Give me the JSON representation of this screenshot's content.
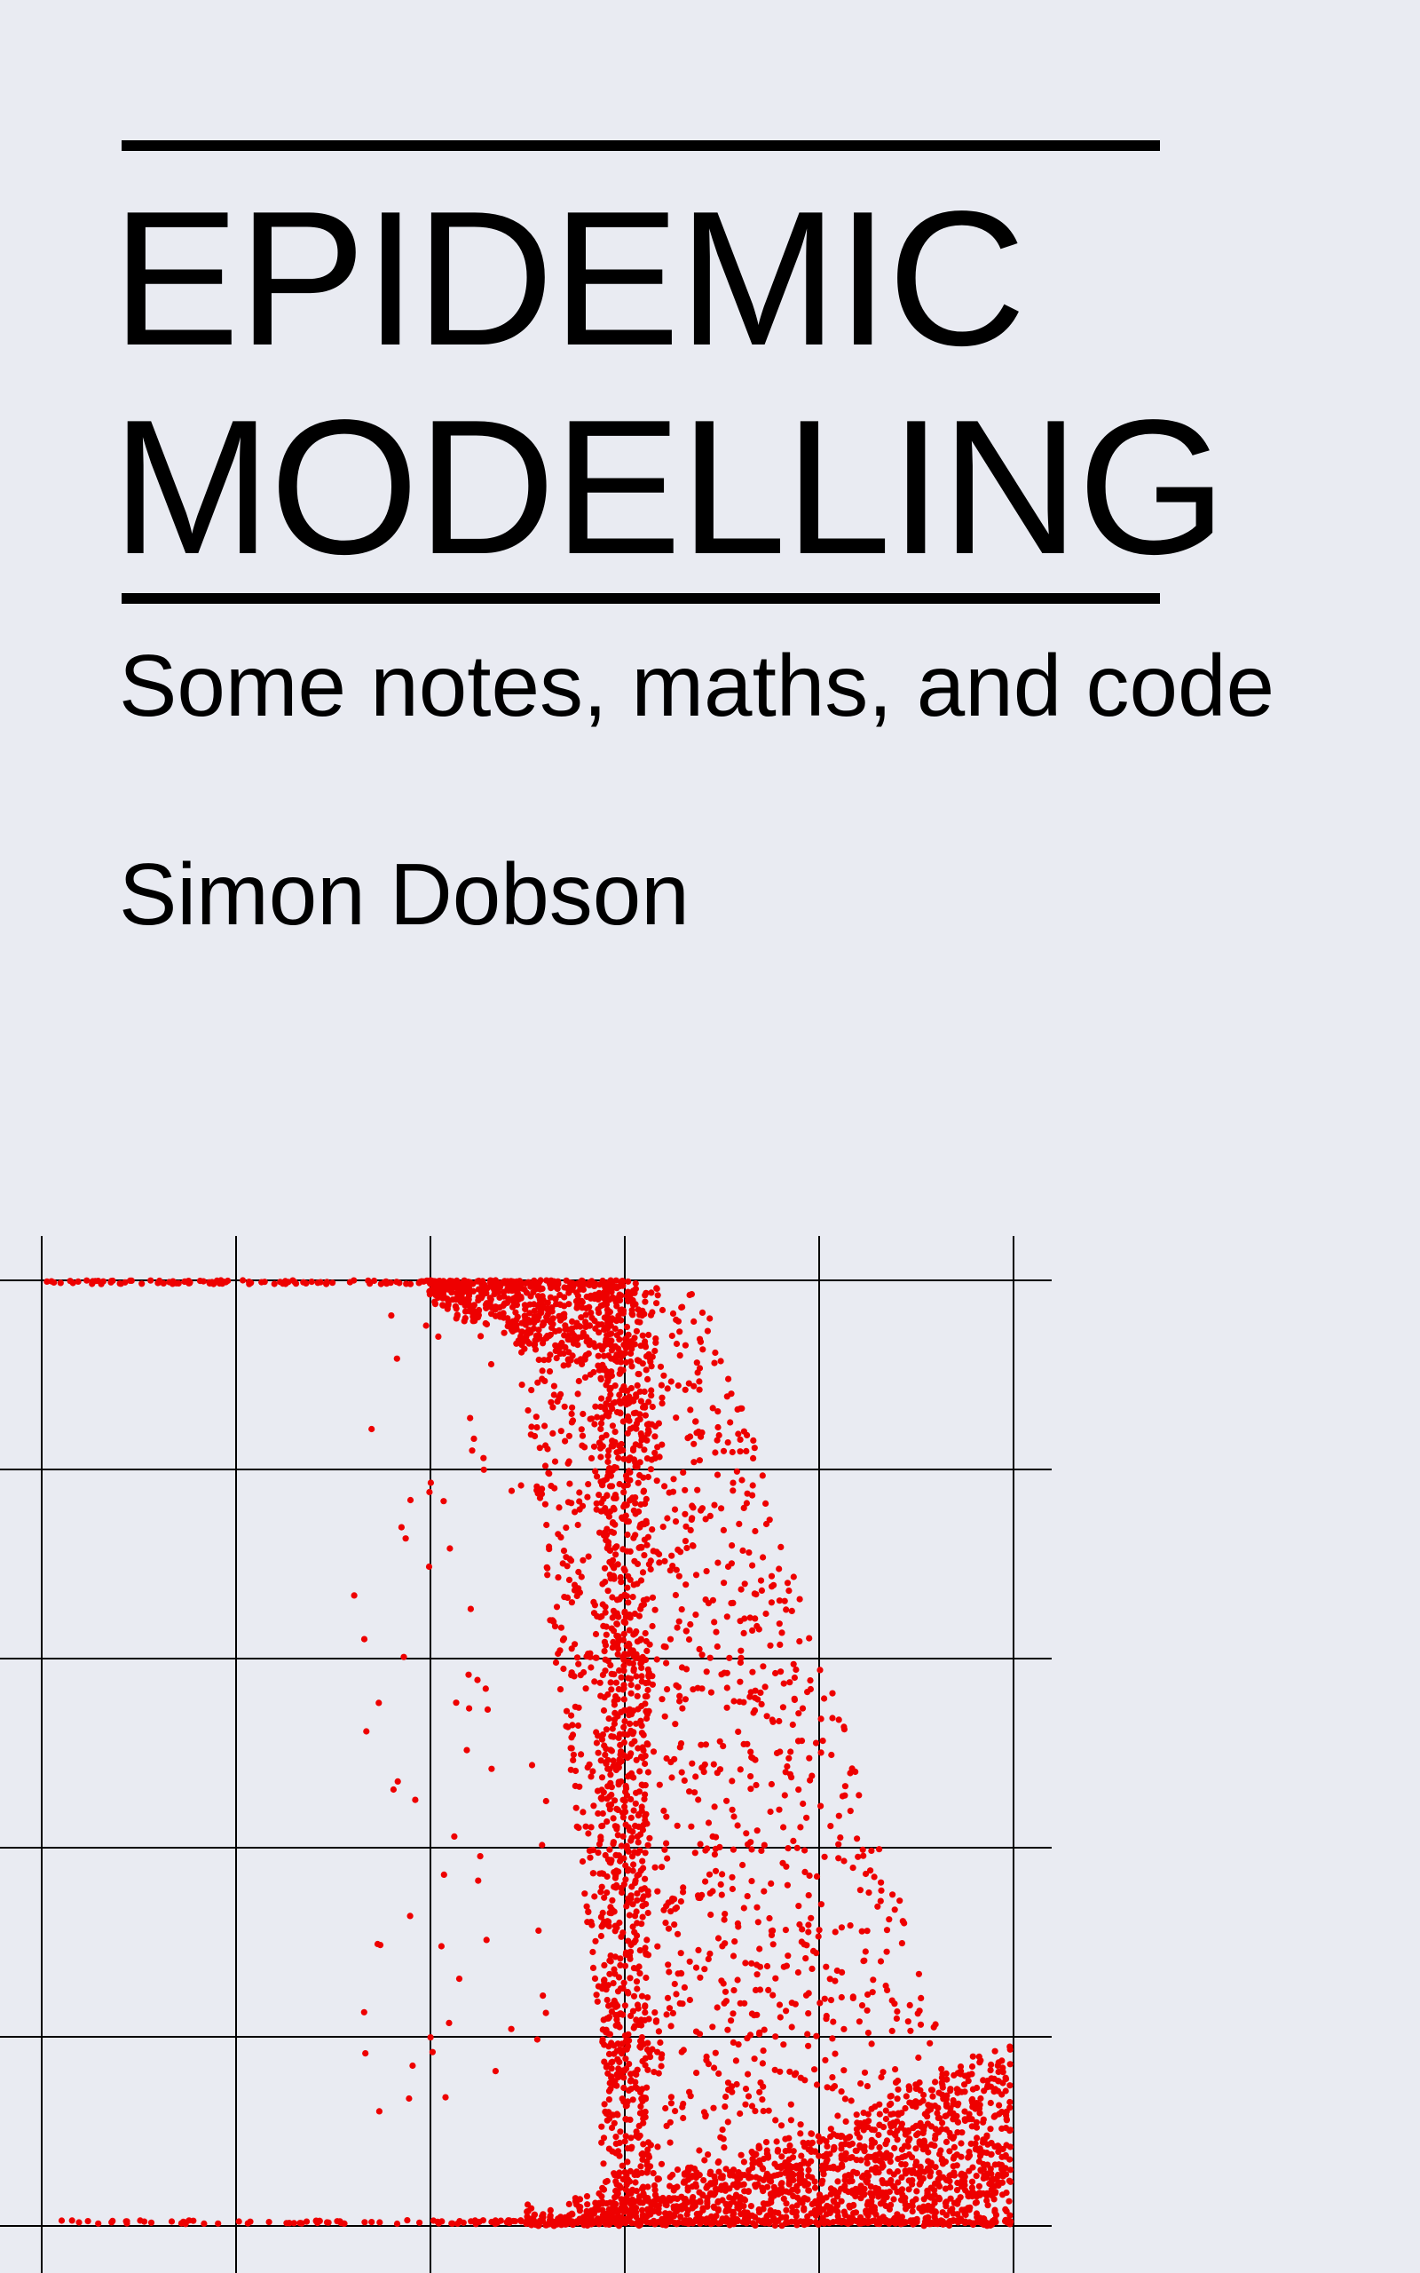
{
  "cover": {
    "title_line_1": "EPIDEMIC",
    "title_line_2": "MODELLING",
    "subtitle": "Some notes, maths, and code",
    "author": "Simon Dobson",
    "background_color": "#e9ebf2",
    "text_color": "#000000"
  },
  "chart_data": {
    "type": "scatter",
    "title": "",
    "xlabel": "",
    "ylabel": "",
    "grid": true,
    "tick_labels_visible": false,
    "point_color": "#ee0000",
    "xlim": [
      0,
      5.2
    ],
    "ylim": [
      0,
      5.2
    ],
    "x_gridlines": [
      0,
      1,
      2,
      3,
      4,
      5
    ],
    "y_gridlines": [
      0,
      1,
      2,
      3,
      4,
      5
    ],
    "series": [
      {
        "description_hidden": true,
        "clusters": [
          {
            "band": "top-plateau",
            "x_range": [
              0,
              3.0
            ],
            "y_mean": 5.0,
            "y_spread": 0.02,
            "count": 150
          },
          {
            "band": "bottom-plateau",
            "x_range": [
              0,
              5.0
            ],
            "y_mean": 0.02,
            "y_spread": 0.03,
            "count": 300
          },
          {
            "band": "transition",
            "x_range": [
              1.7,
              5.0
            ],
            "y_range": [
              0.05,
              5.0
            ],
            "count": 2600
          }
        ]
      }
    ]
  }
}
